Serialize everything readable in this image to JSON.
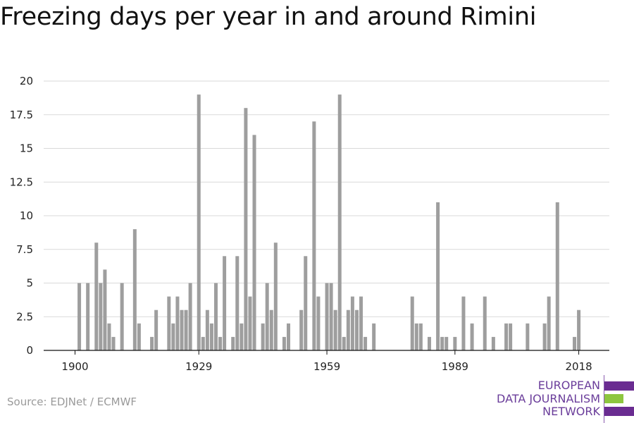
{
  "title": "Freezing days per year in and around Rimini",
  "source": "Source: EDJNet / ECMWF",
  "logo": {
    "line1": "EUROPEAN",
    "line2": "DATA JOURNALISM",
    "line3": "NETWORK",
    "colors": [
      "#6a2c91",
      "#8dc63f",
      "#6a2c91"
    ]
  },
  "colors": {
    "bar": "#9e9e9e",
    "grid": "#d9d9d9",
    "axis": "#111111",
    "text": "#222222"
  },
  "chart_data": {
    "type": "bar",
    "title": "Freezing days per year in and around Rimini",
    "xlabel": "",
    "ylabel": "",
    "xlim": [
      1900,
      2018
    ],
    "ylim": [
      0,
      20
    ],
    "x_ticks": [
      1900,
      1929,
      1959,
      1989,
      2018
    ],
    "y_ticks": [
      0,
      2.5,
      5,
      7.5,
      10,
      12.5,
      15,
      17.5,
      20
    ],
    "grid": true,
    "x": [
      1900,
      1901,
      1902,
      1903,
      1904,
      1905,
      1906,
      1907,
      1908,
      1909,
      1910,
      1911,
      1912,
      1913,
      1914,
      1915,
      1916,
      1917,
      1918,
      1919,
      1920,
      1921,
      1922,
      1923,
      1924,
      1925,
      1926,
      1927,
      1928,
      1929,
      1930,
      1931,
      1932,
      1933,
      1934,
      1935,
      1936,
      1937,
      1938,
      1939,
      1940,
      1941,
      1942,
      1943,
      1944,
      1945,
      1946,
      1947,
      1948,
      1949,
      1950,
      1951,
      1952,
      1953,
      1954,
      1955,
      1956,
      1957,
      1958,
      1959,
      1960,
      1961,
      1962,
      1963,
      1964,
      1965,
      1966,
      1967,
      1968,
      1969,
      1970,
      1971,
      1972,
      1973,
      1974,
      1975,
      1976,
      1977,
      1978,
      1979,
      1980,
      1981,
      1982,
      1983,
      1984,
      1985,
      1986,
      1987,
      1988,
      1989,
      1990,
      1991,
      1992,
      1993,
      1994,
      1995,
      1996,
      1997,
      1998,
      1999,
      2000,
      2001,
      2002,
      2003,
      2004,
      2005,
      2006,
      2007,
      2008,
      2009,
      2010,
      2011,
      2012,
      2013,
      2014,
      2015,
      2016,
      2017,
      2018
    ],
    "values": [
      0,
      5,
      0,
      5,
      0,
      8,
      5,
      6,
      2,
      1,
      0,
      5,
      0,
      0,
      9,
      2,
      0,
      0,
      1,
      3,
      0,
      0,
      4,
      2,
      4,
      3,
      3,
      5,
      0,
      19,
      1,
      3,
      2,
      5,
      1,
      7,
      0,
      1,
      7,
      2,
      18,
      4,
      16,
      0,
      2,
      5,
      3,
      8,
      0,
      1,
      2,
      0,
      0,
      3,
      7,
      0,
      17,
      4,
      0,
      5,
      5,
      3,
      19,
      1,
      3,
      4,
      3,
      4,
      1,
      0,
      2,
      0,
      0,
      0,
      0,
      0,
      0,
      0,
      0,
      4,
      2,
      2,
      0,
      1,
      0,
      11,
      1,
      1,
      0,
      1,
      0,
      4,
      0,
      2,
      0,
      0,
      4,
      0,
      1,
      0,
      0,
      2,
      2,
      0,
      0,
      0,
      2,
      0,
      0,
      0,
      2,
      4,
      0,
      11,
      0,
      0,
      0,
      1,
      3
    ]
  }
}
